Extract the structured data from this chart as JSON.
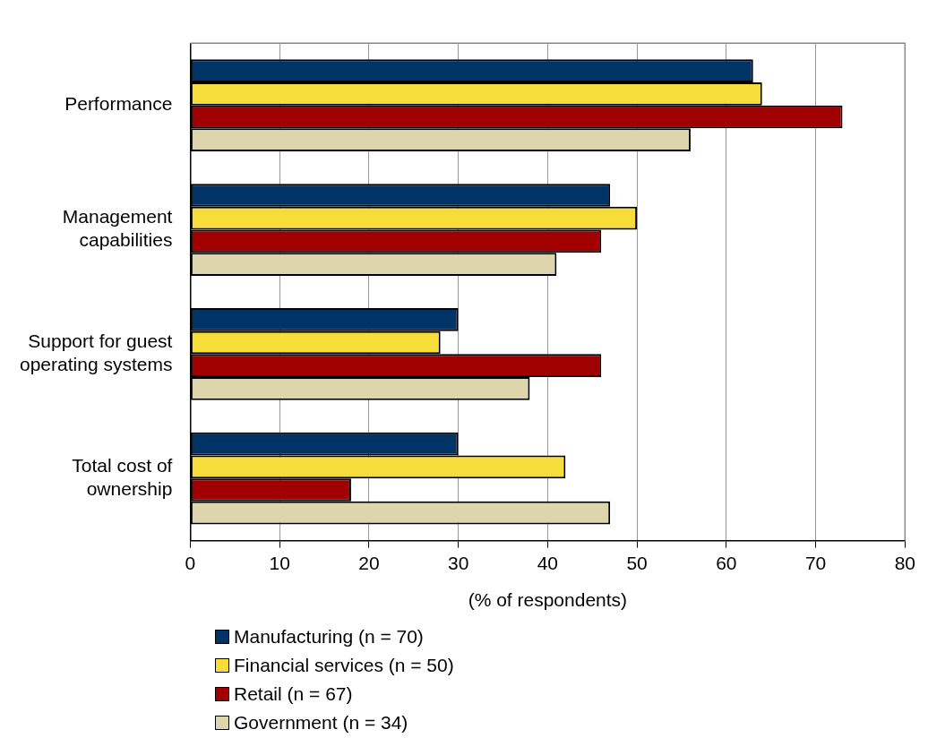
{
  "chart_data": {
    "type": "bar",
    "orientation": "horizontal",
    "xlabel": "(% of respondents)",
    "categories": [
      "Performance",
      "Management capabilities",
      "Support for guest operating systems",
      "Total cost of ownership"
    ],
    "series": [
      {
        "name": "Manufacturing (n = 70)",
        "color": "#003366",
        "values": [
          63,
          47,
          30,
          30
        ]
      },
      {
        "name": "Financial services (n = 50)",
        "color": "#f7dd3a",
        "values": [
          64,
          50,
          28,
          42
        ]
      },
      {
        "name": "Retail (n = 67)",
        "color": "#a00000",
        "values": [
          73,
          46,
          46,
          18
        ]
      },
      {
        "name": "Government (n = 34)",
        "color": "#ddd6ad",
        "values": [
          56,
          41,
          38,
          47
        ]
      }
    ],
    "xlim": [
      0,
      80
    ],
    "xticks": [
      0,
      10,
      20,
      30,
      40,
      50,
      60,
      70,
      80
    ],
    "grid": "x",
    "legend": "bottom"
  }
}
